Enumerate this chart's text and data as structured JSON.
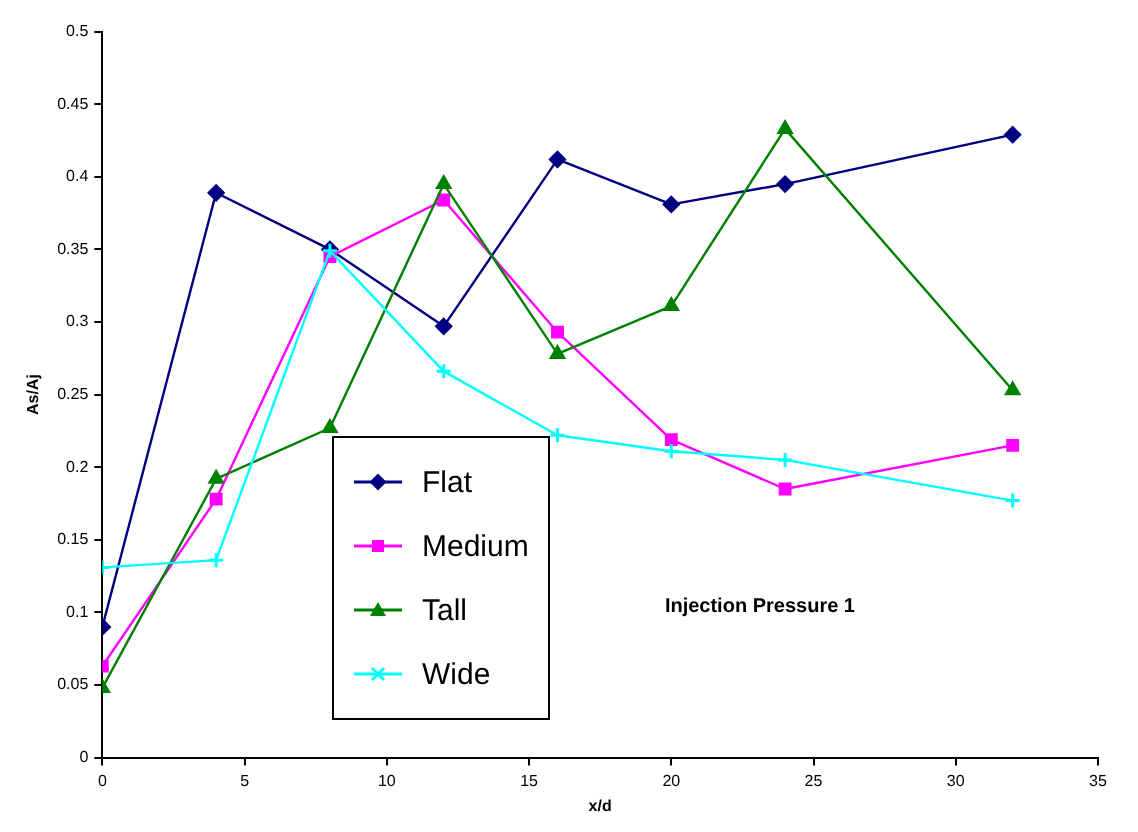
{
  "chart_data": {
    "type": "line",
    "xlabel": "x/d",
    "ylabel": "As/Aj",
    "x": [
      0,
      4,
      8,
      12,
      16,
      20,
      24,
      32
    ],
    "series": [
      {
        "name": "Flat",
        "color": "#000080",
        "marker": "diamond",
        "values": [
          0.09,
          0.389,
          0.35,
          0.297,
          0.412,
          0.381,
          0.395,
          0.429
        ]
      },
      {
        "name": "Medium",
        "color": "#ff00ff",
        "marker": "square",
        "values": [
          0.063,
          0.178,
          0.345,
          0.384,
          0.293,
          0.219,
          0.185,
          0.215
        ]
      },
      {
        "name": "Tall",
        "color": "#008000",
        "marker": "triangle",
        "values": [
          0.048,
          0.192,
          0.227,
          0.395,
          0.278,
          0.311,
          0.433,
          0.253
        ]
      },
      {
        "name": "Wide",
        "color": "#00ffff",
        "marker": "cross",
        "values": [
          0.131,
          0.136,
          0.349,
          0.266,
          0.222,
          0.211,
          0.205,
          0.177
        ]
      }
    ],
    "xlim": [
      0,
      35
    ],
    "xticks": [
      0,
      5,
      10,
      15,
      20,
      25,
      30,
      35
    ],
    "ylim": [
      0,
      0.5
    ],
    "yticks": [
      0,
      0.05,
      0.1,
      0.15,
      0.2,
      0.25,
      0.3,
      0.35,
      0.4,
      0.45,
      0.5
    ],
    "grid": false,
    "legend": "bottom left",
    "line_style": "solid",
    "annotations": [
      "Injection Pressure 1"
    ]
  }
}
